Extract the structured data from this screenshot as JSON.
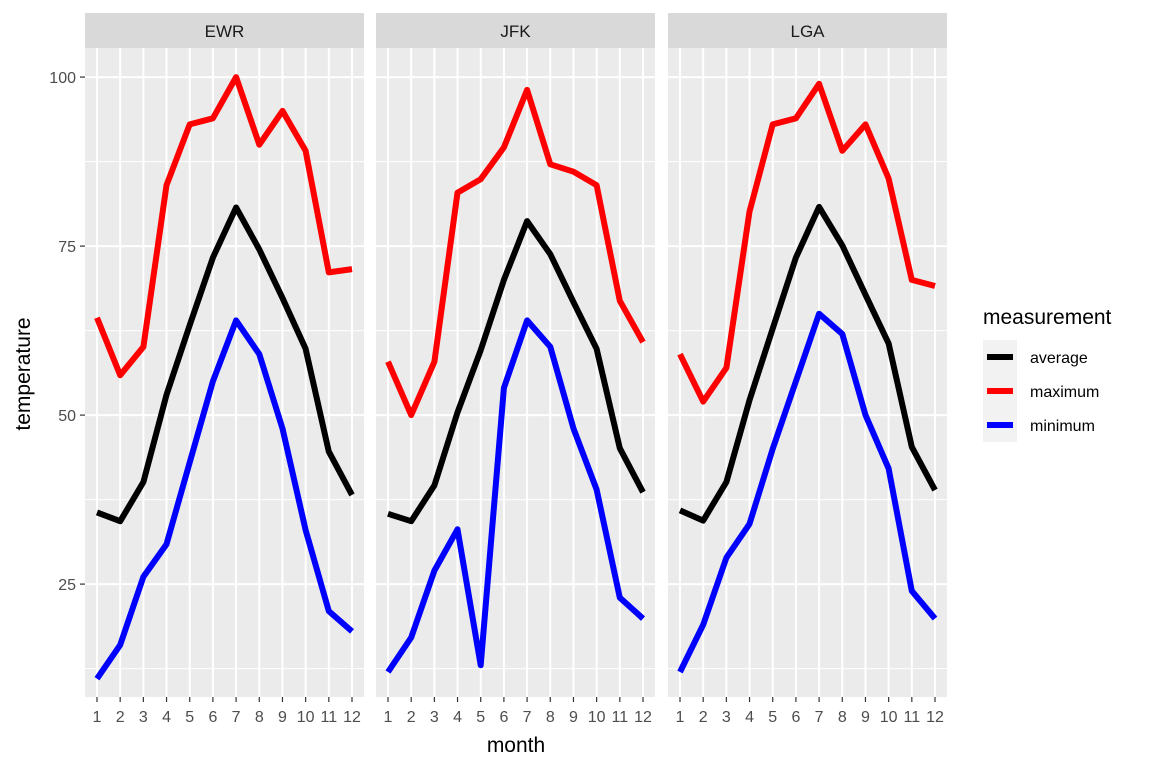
{
  "chart_data": {
    "type": "line",
    "xlabel": "month",
    "ylabel": "temperature",
    "x": [
      1,
      2,
      3,
      4,
      5,
      6,
      7,
      8,
      9,
      10,
      11,
      12
    ],
    "x_tick_labels": [
      "1",
      "2",
      "3",
      "4",
      "5",
      "6",
      "7",
      "8",
      "9",
      "10",
      "11",
      "12"
    ],
    "y_ticks": [
      25,
      50,
      75,
      100
    ],
    "ylim": [
      8.3,
      104.3
    ],
    "grid": true,
    "legend": {
      "title": "measurement",
      "placement": "right",
      "entries": [
        {
          "name": "average",
          "color": "#000000"
        },
        {
          "name": "maximum",
          "color": "#FF0000"
        },
        {
          "name": "minimum",
          "color": "#0000FF"
        }
      ]
    },
    "panels": [
      {
        "name": "EWR",
        "series": [
          {
            "name": "average",
            "color": "#000000",
            "values": [
              35.6,
              34.3,
              40.1,
              53.0,
              63.3,
              73.3,
              80.7,
              74.5,
              67.3,
              59.8,
              44.6,
              38.2
            ]
          },
          {
            "name": "maximum",
            "color": "#FF0000",
            "values": [
              64.4,
              55.9,
              60.1,
              84.0,
              93.0,
              93.9,
              100.0,
              90.0,
              95.0,
              89.1,
              71.1,
              71.6
            ]
          },
          {
            "name": "minimum",
            "color": "#0000FF",
            "values": [
              11.0,
              16.0,
              26.1,
              30.9,
              43.0,
              55.0,
              64.0,
              59.0,
              48.0,
              33.0,
              21.0,
              18.0
            ]
          }
        ]
      },
      {
        "name": "JFK",
        "series": [
          {
            "name": "average",
            "color": "#000000",
            "values": [
              35.4,
              34.3,
              39.6,
              50.4,
              59.6,
              70.0,
              78.7,
              73.8,
              66.7,
              59.8,
              45.1,
              38.6
            ]
          },
          {
            "name": "maximum",
            "color": "#FF0000",
            "values": [
              57.9,
              50.0,
              57.9,
              82.9,
              84.9,
              89.6,
              98.1,
              87.1,
              86.0,
              84.0,
              66.9,
              60.8
            ]
          },
          {
            "name": "minimum",
            "color": "#0000FF",
            "values": [
              12.0,
              17.1,
              27.0,
              33.1,
              13.0,
              54.0,
              64.0,
              60.1,
              48.0,
              39.0,
              23.0,
              19.9
            ]
          }
        ]
      },
      {
        "name": "LGA",
        "series": [
          {
            "name": "average",
            "color": "#000000",
            "values": [
              35.9,
              34.4,
              40.1,
              52.2,
              62.8,
              73.3,
              80.8,
              75.1,
              67.8,
              60.6,
              45.3,
              38.9
            ]
          },
          {
            "name": "maximum",
            "color": "#FF0000",
            "values": [
              59.0,
              52.0,
              57.0,
              80.1,
              93.0,
              93.9,
              99.0,
              89.1,
              93.0,
              85.0,
              70.0,
              69.1
            ]
          },
          {
            "name": "minimum",
            "color": "#0000FF",
            "values": [
              12.0,
              19.0,
              28.9,
              33.9,
              45.0,
              55.0,
              65.0,
              62.0,
              50.0,
              42.1,
              24.0,
              19.9
            ]
          }
        ]
      }
    ]
  }
}
